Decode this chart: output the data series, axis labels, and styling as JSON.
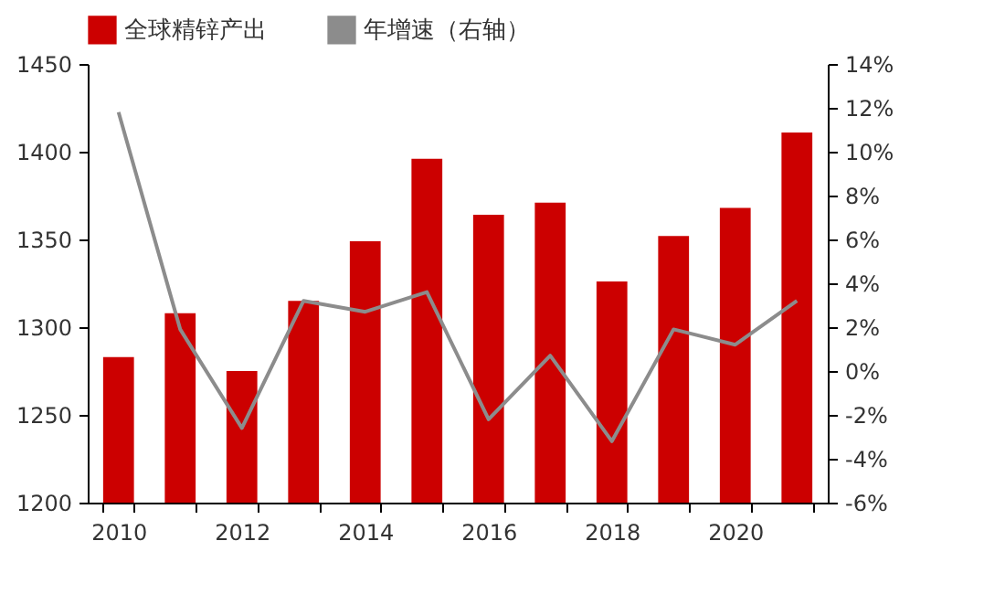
{
  "chart_data": {
    "type": "bar",
    "categories": [
      "2010",
      null,
      "2012",
      null,
      "2014",
      null,
      "2016",
      null,
      "2018",
      null,
      "2020",
      null
    ],
    "series": [
      {
        "name": "全球精锌产出",
        "color": "#cc0000",
        "values": [
          1283,
          1308,
          1275,
          1315,
          1349,
          1396,
          1364,
          1371,
          1326,
          1352,
          1368,
          1411
        ]
      },
      {
        "name": "年增速（右轴）",
        "type": "line",
        "axis": "y2",
        "color": "#8c8c8c",
        "values": [
          11.8,
          1.9,
          -2.6,
          3.2,
          2.7,
          3.6,
          -2.2,
          0.7,
          -3.2,
          1.9,
          1.2,
          3.2
        ]
      }
    ],
    "ylim": [
      1200,
      1450
    ],
    "yticks": [
      1200,
      1250,
      1300,
      1350,
      1400,
      1450
    ],
    "y2lim": [
      -6,
      14
    ],
    "y2ticks": [
      {
        "value": -6,
        "label": "-6%"
      },
      {
        "value": -4,
        "label": "-4%"
      },
      {
        "value": -2,
        "label": "-2%"
      },
      {
        "value": 0,
        "label": "0%"
      },
      {
        "value": 2,
        "label": "2%"
      },
      {
        "value": 4,
        "label": "4%"
      },
      {
        "value": 6,
        "label": "6%"
      },
      {
        "value": 8,
        "label": "8%"
      },
      {
        "value": 10,
        "label": "10%"
      },
      {
        "value": 12,
        "label": "12%"
      },
      {
        "value": 14,
        "label": "14%"
      }
    ],
    "grid": false,
    "legend": "top",
    "marker": "none",
    "line_style": "solid"
  }
}
